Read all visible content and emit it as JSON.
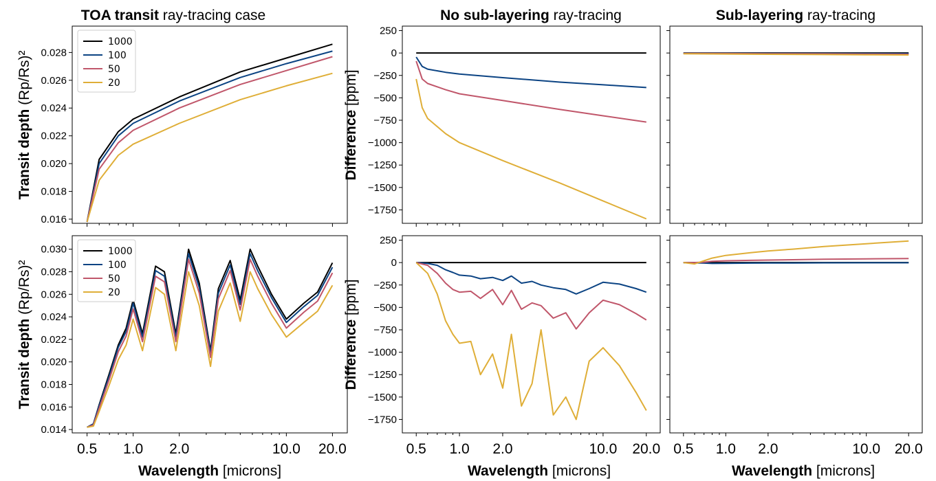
{
  "figure": {
    "col_titles": [
      {
        "bold": "TOA transit",
        "rest": " ray-tracing case"
      },
      {
        "bold": "No sub-layering",
        "rest": " ray-tracing"
      },
      {
        "bold": "Sub-layering",
        "rest": " ray-tracing"
      }
    ],
    "xlabel": {
      "bold": "Wavelength",
      "rest": " [microns]"
    },
    "ylabel_left": {
      "bold": "Transit depth",
      "rest": " (Rp/Rs)²"
    },
    "ylabel_diff": {
      "bold": "Difference",
      "rest": " [ppm]"
    },
    "xticks": [
      "0.5",
      "1.0",
      "2.0",
      "10.0",
      "20.0"
    ],
    "xtick_values": [
      0.5,
      1.0,
      2.0,
      10.0,
      20.0
    ],
    "xlim": [
      0.4,
      25.0
    ],
    "xscale": "log",
    "series_colors": {
      "1000": "#000000",
      "100": "#0b4383",
      "50": "#c0566a",
      "20": "#dfae37"
    },
    "legend": [
      "1000",
      "100",
      "50",
      "20"
    ]
  },
  "chart_data": [
    {
      "type": "line",
      "panel": "top-left",
      "xscale": "log",
      "x": [
        0.5,
        0.6,
        0.8,
        1.0,
        2.0,
        5.0,
        10.0,
        20.0
      ],
      "series": [
        {
          "name": "1000",
          "values": [
            0.0158,
            0.0203,
            0.0223,
            0.0232,
            0.0248,
            0.0266,
            0.0276,
            0.0286
          ]
        },
        {
          "name": "100",
          "values": [
            0.0158,
            0.02,
            0.022,
            0.0229,
            0.0245,
            0.0262,
            0.0272,
            0.0281
          ]
        },
        {
          "name": "50",
          "values": [
            0.0158,
            0.0196,
            0.0215,
            0.0224,
            0.024,
            0.0257,
            0.0267,
            0.0277
          ]
        },
        {
          "name": "20",
          "values": [
            0.0158,
            0.0188,
            0.0206,
            0.0214,
            0.0229,
            0.0246,
            0.0256,
            0.0265
          ]
        }
      ],
      "ylim": [
        0.0157,
        0.0299
      ],
      "yticks": [
        "0.016",
        "0.018",
        "0.020",
        "0.022",
        "0.024",
        "0.026",
        "0.028"
      ],
      "ytick_values": [
        0.016,
        0.018,
        0.02,
        0.022,
        0.024,
        0.026,
        0.028
      ],
      "legend": "top-left"
    },
    {
      "type": "line",
      "panel": "top-middle",
      "xscale": "log",
      "x": [
        0.5,
        0.55,
        0.6,
        0.8,
        1.0,
        2.0,
        5.0,
        10.0,
        20.0
      ],
      "series": [
        {
          "name": "1000",
          "values": [
            0,
            0,
            0,
            0,
            0,
            0,
            0,
            0,
            0
          ]
        },
        {
          "name": "100",
          "values": [
            -45,
            -150,
            -180,
            -215,
            -235,
            -275,
            -325,
            -355,
            -385
          ]
        },
        {
          "name": "50",
          "values": [
            -90,
            -290,
            -340,
            -410,
            -455,
            -530,
            -630,
            -700,
            -770
          ]
        },
        {
          "name": "20",
          "values": [
            -290,
            -610,
            -730,
            -900,
            -1000,
            -1200,
            -1450,
            -1650,
            -1850
          ]
        }
      ],
      "ylim": [
        -1900,
        300
      ],
      "yticks": [
        "250",
        "0",
        "−250",
        "−500",
        "−750",
        "−1000",
        "−1250",
        "−1500",
        "−1750"
      ],
      "ytick_values": [
        250,
        0,
        -250,
        -500,
        -750,
        -1000,
        -1250,
        -1500,
        -1750
      ]
    },
    {
      "type": "line",
      "panel": "top-right",
      "xscale": "log",
      "x": [
        0.5,
        1.0,
        2.0,
        5.0,
        10.0,
        20.0
      ],
      "series": [
        {
          "name": "1000",
          "values": [
            0,
            0,
            0,
            0,
            0,
            0
          ]
        },
        {
          "name": "100",
          "values": [
            -2,
            -3,
            -4,
            -5,
            -6,
            -7
          ]
        },
        {
          "name": "50",
          "values": [
            -4,
            -6,
            -8,
            -10,
            -12,
            -14
          ]
        },
        {
          "name": "20",
          "values": [
            -8,
            -11,
            -14,
            -17,
            -20,
            -22
          ]
        }
      ],
      "ylim": [
        -1900,
        300
      ]
    },
    {
      "type": "line",
      "panel": "bottom-left",
      "xscale": "log",
      "x": [
        0.5,
        0.55,
        0.6,
        0.7,
        0.8,
        0.9,
        1.0,
        1.15,
        1.4,
        1.6,
        1.9,
        2.3,
        2.7,
        3.2,
        3.6,
        4.3,
        5.0,
        5.8,
        6.5,
        8.0,
        10.0,
        13.0,
        16.0,
        20.0
      ],
      "series": [
        {
          "name": "1000",
          "values": [
            0.0142,
            0.0145,
            0.0162,
            0.019,
            0.0215,
            0.023,
            0.0255,
            0.0225,
            0.0285,
            0.028,
            0.0225,
            0.03,
            0.027,
            0.021,
            0.0265,
            0.029,
            0.0255,
            0.03,
            0.0285,
            0.026,
            0.0238,
            0.0252,
            0.0262,
            0.0288
          ]
        },
        {
          "name": "100",
          "values": [
            0.0142,
            0.0145,
            0.0161,
            0.0188,
            0.0213,
            0.0227,
            0.0252,
            0.0222,
            0.0281,
            0.0276,
            0.0222,
            0.0296,
            0.0266,
            0.0208,
            0.0261,
            0.0286,
            0.0251,
            0.0296,
            0.0281,
            0.0257,
            0.0235,
            0.0249,
            0.0259,
            0.0284
          ]
        },
        {
          "name": "50",
          "values": [
            0.0142,
            0.0144,
            0.0159,
            0.0185,
            0.0209,
            0.0223,
            0.0247,
            0.0218,
            0.0276,
            0.0271,
            0.0218,
            0.0291,
            0.0261,
            0.0204,
            0.0256,
            0.0281,
            0.0246,
            0.0291,
            0.0276,
            0.0252,
            0.023,
            0.0244,
            0.0254,
            0.0279
          ]
        },
        {
          "name": "20",
          "values": [
            0.0142,
            0.0143,
            0.0156,
            0.018,
            0.0202,
            0.0215,
            0.0238,
            0.021,
            0.0266,
            0.026,
            0.021,
            0.028,
            0.025,
            0.0196,
            0.0245,
            0.027,
            0.0236,
            0.028,
            0.0265,
            0.0242,
            0.0222,
            0.0235,
            0.0245,
            0.0268
          ]
        }
      ],
      "ylim": [
        0.0137,
        0.0312
      ],
      "yticks": [
        "0.014",
        "0.016",
        "0.018",
        "0.020",
        "0.022",
        "0.024",
        "0.026",
        "0.028",
        "0.030"
      ],
      "ytick_values": [
        0.014,
        0.016,
        0.018,
        0.02,
        0.022,
        0.024,
        0.026,
        0.028,
        0.03
      ],
      "legend": "top-left"
    },
    {
      "type": "line",
      "panel": "bottom-middle",
      "xscale": "log",
      "x": [
        0.5,
        0.6,
        0.7,
        0.8,
        0.9,
        1.0,
        1.2,
        1.4,
        1.7,
        2.0,
        2.3,
        2.7,
        3.2,
        3.7,
        4.5,
        5.5,
        6.5,
        8.0,
        10.0,
        13.0,
        17.0,
        20.0
      ],
      "series": [
        {
          "name": "1000",
          "values": [
            0,
            0,
            0,
            0,
            0,
            0,
            0,
            0,
            0,
            0,
            0,
            0,
            0,
            0,
            0,
            0,
            0,
            0,
            0,
            0,
            0,
            0
          ]
        },
        {
          "name": "100",
          "values": [
            0,
            -10,
            -30,
            -80,
            -110,
            -140,
            -150,
            -180,
            -165,
            -200,
            -150,
            -230,
            -210,
            -250,
            -280,
            -300,
            -350,
            -290,
            -220,
            -240,
            -290,
            -330
          ]
        },
        {
          "name": "50",
          "values": [
            0,
            -30,
            -120,
            -230,
            -300,
            -330,
            -320,
            -400,
            -300,
            -470,
            -310,
            -520,
            -450,
            -480,
            -620,
            -560,
            -740,
            -560,
            -420,
            -470,
            -570,
            -640
          ]
        },
        {
          "name": "20",
          "values": [
            0,
            -120,
            -350,
            -650,
            -800,
            -900,
            -880,
            -1250,
            -1020,
            -1400,
            -800,
            -1600,
            -1350,
            -750,
            -1700,
            -1500,
            -1750,
            -1100,
            -950,
            -1150,
            -1450,
            -1650
          ]
        }
      ],
      "ylim": [
        -1900,
        300
      ],
      "yticks": [
        "250",
        "0",
        "−250",
        "−500",
        "−750",
        "−1000",
        "−1250",
        "−1500",
        "−1750"
      ],
      "ytick_values": [
        250,
        0,
        -250,
        -500,
        -750,
        -1000,
        -1250,
        -1500,
        -1750
      ]
    },
    {
      "type": "line",
      "panel": "bottom-right",
      "xscale": "log",
      "x": [
        0.5,
        0.6,
        0.7,
        0.8,
        1.0,
        1.5,
        2.0,
        3.0,
        5.0,
        10.0,
        20.0
      ],
      "series": [
        {
          "name": "1000",
          "values": [
            0,
            0,
            0,
            0,
            0,
            0,
            0,
            0,
            0,
            0,
            0
          ]
        },
        {
          "name": "100",
          "values": [
            0,
            -3,
            -6,
            -10,
            -8,
            -6,
            -5,
            -4,
            -3,
            -2,
            -2
          ]
        },
        {
          "name": "50",
          "values": [
            0,
            0,
            5,
            15,
            20,
            25,
            28,
            32,
            38,
            42,
            45
          ]
        },
        {
          "name": "20",
          "values": [
            0,
            -15,
            20,
            50,
            80,
            110,
            130,
            150,
            180,
            210,
            240
          ]
        }
      ],
      "ylim": [
        -1900,
        300
      ]
    }
  ]
}
